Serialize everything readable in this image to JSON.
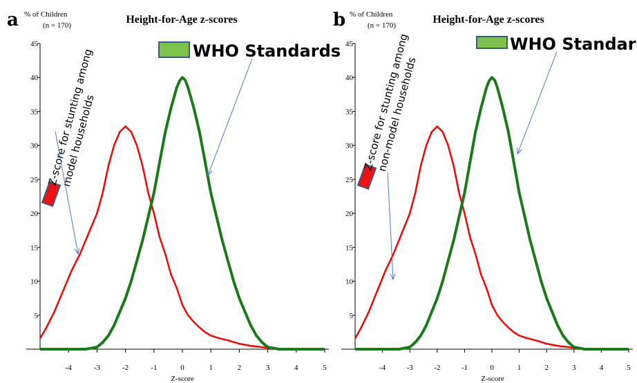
{
  "chart_data": [
    {
      "panel": "a",
      "type": "line",
      "title": "Height-for-Age z-scores",
      "ylabel": "% of Children",
      "n_label": "(n = 170)",
      "xlabel": "Z-score",
      "xlim": [
        -5,
        5
      ],
      "ylim": [
        0,
        45
      ],
      "x_ticks": [
        "-4",
        "-3",
        "-2",
        "-1",
        "0",
        "1",
        "2",
        "3",
        "4",
        "5"
      ],
      "y_ticks": [
        "5",
        "10",
        "15",
        "20",
        "25",
        "30",
        "35",
        "40",
        "45"
      ],
      "legend_label": "WHO Standards",
      "annotation": [
        "Z-score for stunting among",
        "model households"
      ],
      "series": [
        {
          "color": "#ff0000",
          "points": [
            [
              -5,
              1.6
            ],
            [
              -4.8,
              3
            ],
            [
              -4.5,
              5.5
            ],
            [
              -4.2,
              8.5
            ],
            [
              -3.9,
              11.5
            ],
            [
              -3.6,
              14
            ],
            [
              -3.3,
              17
            ],
            [
              -3,
              20
            ],
            [
              -2.8,
              23
            ],
            [
              -2.6,
              27
            ],
            [
              -2.4,
              30
            ],
            [
              -2.2,
              32
            ],
            [
              -2,
              32.8
            ],
            [
              -1.8,
              32
            ],
            [
              -1.6,
              30
            ],
            [
              -1.4,
              27
            ],
            [
              -1.2,
              23
            ],
            [
              -1,
              20
            ],
            [
              -0.8,
              16.5
            ],
            [
              -0.6,
              14
            ],
            [
              -0.4,
              11
            ],
            [
              -0.2,
              9
            ],
            [
              0,
              6.5
            ],
            [
              0.2,
              5
            ],
            [
              0.4,
              4
            ],
            [
              0.6,
              3.2
            ],
            [
              0.8,
              2.5
            ],
            [
              1,
              2
            ],
            [
              1.3,
              1.6
            ],
            [
              1.6,
              1.3
            ],
            [
              2,
              0.8
            ],
            [
              2.4,
              0.5
            ],
            [
              2.8,
              0.3
            ],
            [
              3,
              0.2
            ],
            [
              3.2,
              0
            ]
          ]
        },
        {
          "color": "#1a7a1a",
          "points": [
            [
              -5,
              0
            ],
            [
              -3.4,
              0
            ],
            [
              -3,
              0.3
            ],
            [
              -2.8,
              1
            ],
            [
              -2.6,
              2
            ],
            [
              -2.4,
              3.5
            ],
            [
              -2.2,
              5.5
            ],
            [
              -2,
              7.5
            ],
            [
              -1.8,
              10
            ],
            [
              -1.6,
              13
            ],
            [
              -1.4,
              16
            ],
            [
              -1.2,
              19.5
            ],
            [
              -1,
              23
            ],
            [
              -0.8,
              27.5
            ],
            [
              -0.6,
              32
            ],
            [
              -0.4,
              35.5
            ],
            [
              -0.2,
              38.5
            ],
            [
              -0.1,
              39.5
            ],
            [
              0,
              40
            ],
            [
              0.1,
              39.6
            ],
            [
              0.2,
              38.5
            ],
            [
              0.4,
              35.5
            ],
            [
              0.6,
              32
            ],
            [
              0.8,
              27.5
            ],
            [
              1,
              23
            ],
            [
              1.2,
              19.5
            ],
            [
              1.4,
              16
            ],
            [
              1.6,
              13
            ],
            [
              1.8,
              10
            ],
            [
              2,
              7.5
            ],
            [
              2.2,
              5.5
            ],
            [
              2.4,
              3.5
            ],
            [
              2.6,
              2
            ],
            [
              2.8,
              1
            ],
            [
              3,
              0.3
            ],
            [
              3.4,
              0
            ],
            [
              5,
              0
            ]
          ]
        }
      ]
    },
    {
      "panel": "b",
      "type": "line",
      "title": "Height-for-Age z-scores",
      "ylabel": "% of Children",
      "n_label": "(n = 170)",
      "xlabel": "Z-score",
      "xlim": [
        -5,
        5
      ],
      "ylim": [
        0,
        45
      ],
      "x_ticks": [
        "-4",
        "-3",
        "-2",
        "-1",
        "0",
        "1",
        "2",
        "3",
        "4",
        "5"
      ],
      "y_ticks": [
        "5",
        "10",
        "15",
        "20",
        "25",
        "30",
        "35",
        "40",
        "45"
      ],
      "legend_label": "WHO Standards",
      "annotation": [
        "Z-score for stunting among",
        "non-model households"
      ],
      "series": [
        {
          "color": "#ff0000",
          "points": [
            [
              -5,
              1.6
            ],
            [
              -4.8,
              3
            ],
            [
              -4.5,
              5.5
            ],
            [
              -4.2,
              8.5
            ],
            [
              -3.9,
              11.5
            ],
            [
              -3.6,
              14
            ],
            [
              -3.3,
              17
            ],
            [
              -3,
              20
            ],
            [
              -2.8,
              23
            ],
            [
              -2.6,
              27
            ],
            [
              -2.4,
              30
            ],
            [
              -2.2,
              32
            ],
            [
              -2,
              32.8
            ],
            [
              -1.8,
              32
            ],
            [
              -1.6,
              30
            ],
            [
              -1.4,
              27
            ],
            [
              -1.2,
              23
            ],
            [
              -1,
              20
            ],
            [
              -0.8,
              16.5
            ],
            [
              -0.6,
              14
            ],
            [
              -0.4,
              11
            ],
            [
              -0.2,
              9
            ],
            [
              0,
              6.5
            ],
            [
              0.2,
              5
            ],
            [
              0.4,
              4
            ],
            [
              0.6,
              3.2
            ],
            [
              0.8,
              2.5
            ],
            [
              1,
              2
            ],
            [
              1.3,
              1.6
            ],
            [
              1.6,
              1.3
            ],
            [
              2,
              0.8
            ],
            [
              2.4,
              0.5
            ],
            [
              2.8,
              0.3
            ],
            [
              3,
              0.2
            ],
            [
              3.2,
              0
            ]
          ]
        },
        {
          "color": "#1a7a1a",
          "points": [
            [
              -5,
              0
            ],
            [
              -3.4,
              0
            ],
            [
              -3,
              0.3
            ],
            [
              -2.8,
              1
            ],
            [
              -2.6,
              2
            ],
            [
              -2.4,
              3.5
            ],
            [
              -2.2,
              5.5
            ],
            [
              -2,
              7.5
            ],
            [
              -1.8,
              10
            ],
            [
              -1.6,
              13
            ],
            [
              -1.4,
              16
            ],
            [
              -1.2,
              19.5
            ],
            [
              -1,
              23
            ],
            [
              -0.8,
              27.5
            ],
            [
              -0.6,
              32
            ],
            [
              -0.4,
              35.5
            ],
            [
              -0.2,
              38.5
            ],
            [
              -0.1,
              39.5
            ],
            [
              0,
              40
            ],
            [
              0.1,
              39.6
            ],
            [
              0.2,
              38.5
            ],
            [
              0.4,
              35.5
            ],
            [
              0.6,
              32
            ],
            [
              0.8,
              27.5
            ],
            [
              1,
              23
            ],
            [
              1.2,
              19.5
            ],
            [
              1.4,
              16
            ],
            [
              1.6,
              13
            ],
            [
              1.8,
              10
            ],
            [
              2,
              7.5
            ],
            [
              2.2,
              5.5
            ],
            [
              2.4,
              3.5
            ],
            [
              2.6,
              2
            ],
            [
              2.8,
              1
            ],
            [
              3,
              0.3
            ],
            [
              3.4,
              0
            ],
            [
              5,
              0
            ]
          ]
        }
      ]
    }
  ]
}
